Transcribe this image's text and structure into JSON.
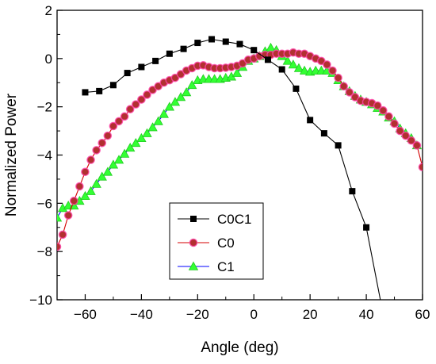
{
  "chart_data": {
    "type": "line",
    "title": "",
    "xlabel": "Angle (deg)",
    "ylabel": "Normalized Power",
    "xlim": [
      -70,
      60
    ],
    "ylim": [
      -10,
      2
    ],
    "x_ticks": [
      -60,
      -40,
      -20,
      0,
      20,
      40,
      60
    ],
    "y_ticks": [
      2,
      0,
      -2,
      -4,
      -6,
      -8,
      -10
    ],
    "x_tick_labels": [
      "−60",
      "−40",
      "−20",
      "0",
      "20",
      "40",
      "60"
    ],
    "y_tick_labels": [
      "2",
      "0",
      "−2",
      "−4",
      "−6",
      "−8",
      "−10"
    ],
    "grid": false,
    "legend_position": "lower-center",
    "series": [
      {
        "name": "C0C1",
        "color": "#000000",
        "marker": "square",
        "points": [
          [
            -60,
            -1.4
          ],
          [
            -55,
            -1.35
          ],
          [
            -50,
            -1.1
          ],
          [
            -45,
            -0.6
          ],
          [
            -40,
            -0.35
          ],
          [
            -35,
            -0.1
          ],
          [
            -30,
            0.2
          ],
          [
            -25,
            0.4
          ],
          [
            -20,
            0.65
          ],
          [
            -15,
            0.8
          ],
          [
            -10,
            0.7
          ],
          [
            -5,
            0.6
          ],
          [
            0,
            0.35
          ],
          [
            5,
            -0.05
          ],
          [
            10,
            -0.45
          ],
          [
            15,
            -1.25
          ],
          [
            20,
            -2.55
          ],
          [
            25,
            -3.1
          ],
          [
            30,
            -3.6
          ],
          [
            35,
            -5.5
          ],
          [
            40,
            -7.0
          ],
          [
            45,
            -10.0
          ]
        ]
      },
      {
        "name": "C0",
        "color": "#d40000",
        "marker_fill": "#b23030",
        "marker": "circle",
        "points": [
          [
            -70,
            -7.8
          ],
          [
            -68,
            -7.3
          ],
          [
            -66,
            -6.5
          ],
          [
            -64,
            -5.9
          ],
          [
            -62,
            -5.3
          ],
          [
            -60,
            -4.7
          ],
          [
            -58,
            -4.2
          ],
          [
            -56,
            -3.8
          ],
          [
            -54,
            -3.5
          ],
          [
            -52,
            -3.2
          ],
          [
            -50,
            -2.8
          ],
          [
            -48,
            -2.6
          ],
          [
            -46,
            -2.4
          ],
          [
            -44,
            -2.1
          ],
          [
            -42,
            -1.9
          ],
          [
            -40,
            -1.7
          ],
          [
            -38,
            -1.5
          ],
          [
            -36,
            -1.3
          ],
          [
            -34,
            -1.15
          ],
          [
            -32,
            -1.0
          ],
          [
            -30,
            -0.9
          ],
          [
            -28,
            -0.8
          ],
          [
            -26,
            -0.65
          ],
          [
            -24,
            -0.5
          ],
          [
            -22,
            -0.4
          ],
          [
            -20,
            -0.3
          ],
          [
            -18,
            -0.28
          ],
          [
            -16,
            -0.35
          ],
          [
            -14,
            -0.4
          ],
          [
            -12,
            -0.4
          ],
          [
            -10,
            -0.38
          ],
          [
            -8,
            -0.35
          ],
          [
            -6,
            -0.3
          ],
          [
            -4,
            -0.2
          ],
          [
            -2,
            -0.05
          ],
          [
            0,
            0.0
          ],
          [
            2,
            0.1
          ],
          [
            4,
            0.15
          ],
          [
            6,
            0.15
          ],
          [
            8,
            0.2
          ],
          [
            10,
            0.2
          ],
          [
            12,
            0.2
          ],
          [
            14,
            0.25
          ],
          [
            16,
            0.2
          ],
          [
            18,
            0.2
          ],
          [
            20,
            0.1
          ],
          [
            22,
            0.0
          ],
          [
            24,
            -0.1
          ],
          [
            26,
            -0.25
          ],
          [
            28,
            -0.5
          ],
          [
            30,
            -0.8
          ],
          [
            32,
            -1.15
          ],
          [
            34,
            -1.4
          ],
          [
            36,
            -1.6
          ],
          [
            38,
            -1.75
          ],
          [
            40,
            -1.8
          ],
          [
            42,
            -1.85
          ],
          [
            44,
            -1.95
          ],
          [
            46,
            -2.15
          ],
          [
            48,
            -2.4
          ],
          [
            50,
            -2.7
          ],
          [
            52,
            -3.0
          ],
          [
            54,
            -3.2
          ],
          [
            56,
            -3.4
          ],
          [
            58,
            -3.6
          ],
          [
            60,
            -4.5
          ]
        ]
      },
      {
        "name": "C1",
        "color": "#0000ff",
        "marker_fill": "#33ff33",
        "marker": "triangle",
        "points": [
          [
            -70,
            -6.6
          ],
          [
            -68,
            -6.2
          ],
          [
            -66,
            -6.1
          ],
          [
            -64,
            -6.1
          ],
          [
            -62,
            -5.9
          ],
          [
            -60,
            -5.7
          ],
          [
            -58,
            -5.5
          ],
          [
            -56,
            -5.2
          ],
          [
            -54,
            -4.9
          ],
          [
            -52,
            -4.7
          ],
          [
            -50,
            -4.4
          ],
          [
            -48,
            -4.2
          ],
          [
            -46,
            -3.95
          ],
          [
            -44,
            -3.7
          ],
          [
            -42,
            -3.5
          ],
          [
            -40,
            -3.3
          ],
          [
            -38,
            -3.1
          ],
          [
            -36,
            -2.85
          ],
          [
            -34,
            -2.6
          ],
          [
            -32,
            -2.3
          ],
          [
            -30,
            -2.0
          ],
          [
            -28,
            -1.8
          ],
          [
            -26,
            -1.6
          ],
          [
            -24,
            -1.4
          ],
          [
            -22,
            -1.1
          ],
          [
            -20,
            -0.9
          ],
          [
            -18,
            -0.85
          ],
          [
            -16,
            -0.85
          ],
          [
            -14,
            -0.85
          ],
          [
            -12,
            -0.85
          ],
          [
            -10,
            -0.8
          ],
          [
            -8,
            -0.75
          ],
          [
            -6,
            -0.6
          ],
          [
            -4,
            -0.35
          ],
          [
            -2,
            -0.1
          ],
          [
            0,
            0.0
          ],
          [
            2,
            0.1
          ],
          [
            4,
            0.3
          ],
          [
            6,
            0.45
          ],
          [
            8,
            0.35
          ],
          [
            10,
            0.1
          ],
          [
            12,
            -0.1
          ],
          [
            14,
            -0.25
          ],
          [
            16,
            -0.4
          ],
          [
            18,
            -0.5
          ],
          [
            20,
            -0.55
          ],
          [
            22,
            -0.5
          ],
          [
            24,
            -0.5
          ],
          [
            26,
            -0.5
          ],
          [
            28,
            -0.6
          ],
          [
            30,
            -0.9
          ],
          [
            32,
            -1.15
          ],
          [
            34,
            -1.35
          ],
          [
            36,
            -1.55
          ],
          [
            38,
            -1.7
          ],
          [
            40,
            -1.8
          ],
          [
            42,
            -1.9
          ],
          [
            44,
            -2.05
          ],
          [
            46,
            -2.2
          ],
          [
            48,
            -2.45
          ],
          [
            50,
            -2.6
          ],
          [
            52,
            -2.9
          ],
          [
            54,
            -3.1
          ],
          [
            56,
            -3.3
          ],
          [
            58,
            -3.6
          ]
        ]
      }
    ]
  }
}
